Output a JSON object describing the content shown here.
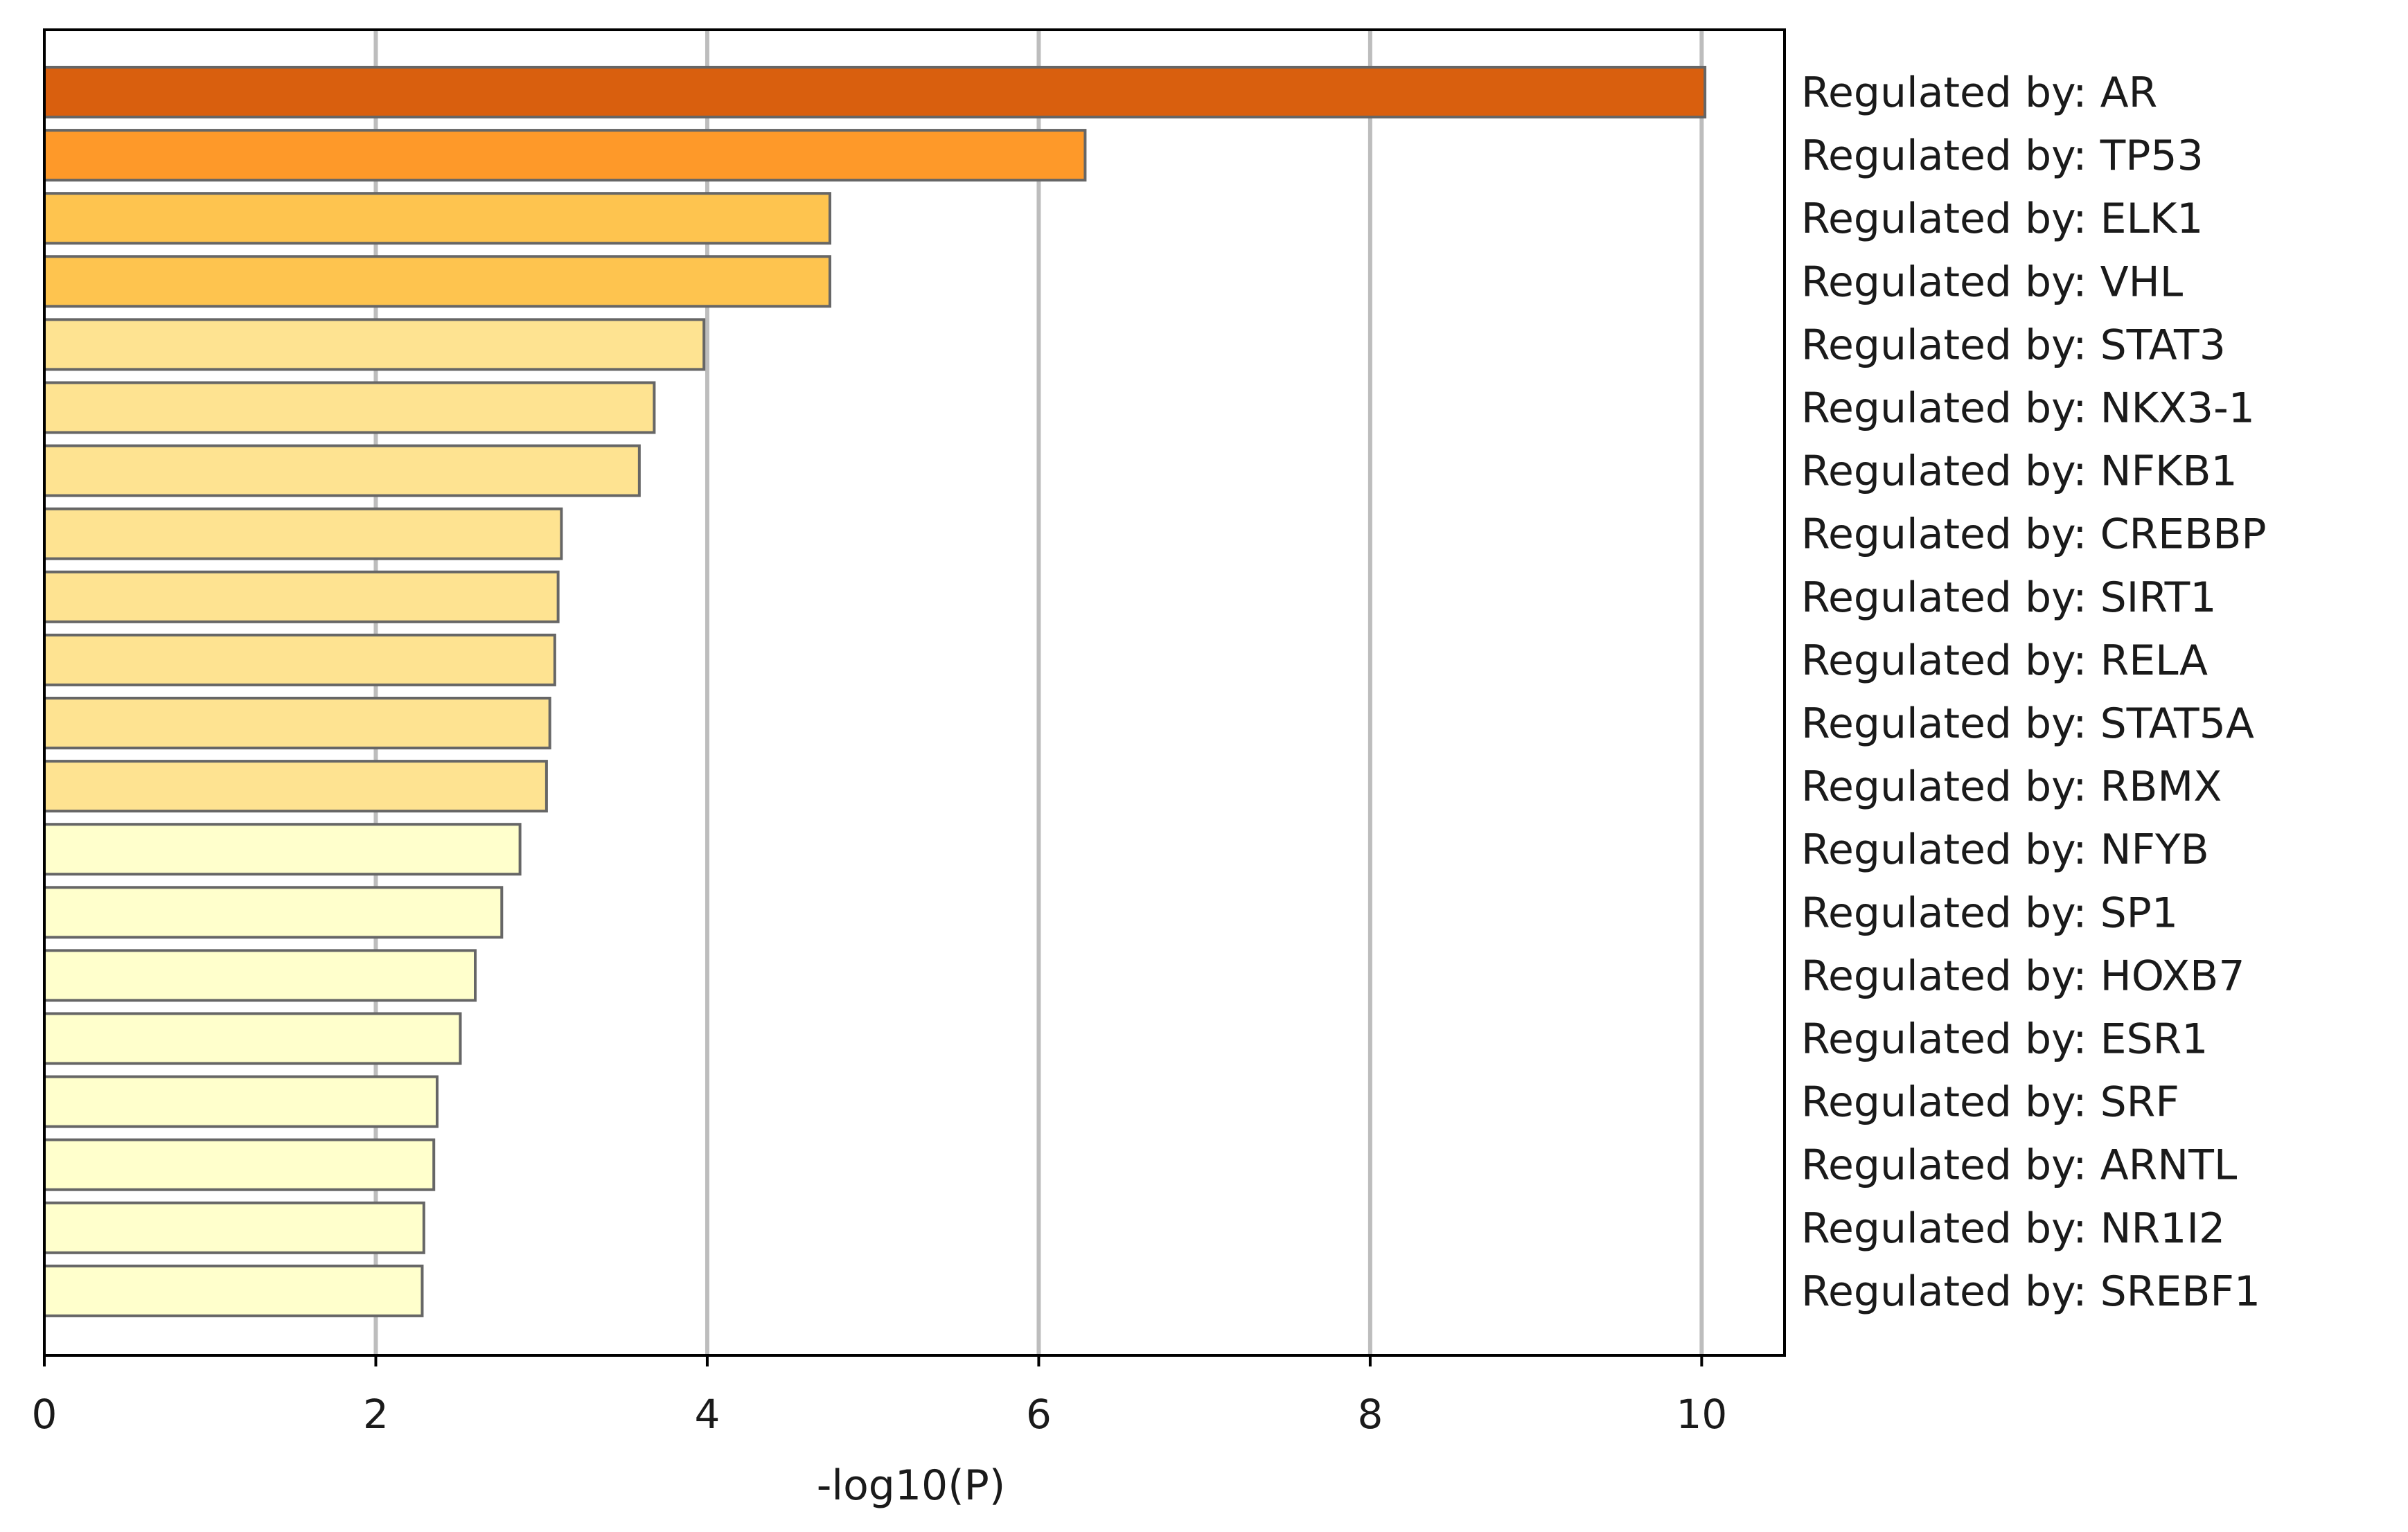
{
  "chart_data": {
    "type": "bar",
    "orientation": "horizontal",
    "title": "",
    "xlabel": "-log10(P)",
    "ylabel": "",
    "xlim": [
      0,
      10.5
    ],
    "xticks": [
      0,
      2,
      4,
      6,
      8,
      10
    ],
    "grid": true,
    "categories": [
      "Regulated by: AR",
      "Regulated by: TP53",
      "Regulated by: ELK1",
      "Regulated by: VHL",
      "Regulated by: STAT3",
      "Regulated by: NKX3-1",
      "Regulated by: NFKB1",
      "Regulated by: CREBBP",
      "Regulated by: SIRT1",
      "Regulated by: RELA",
      "Regulated by: STAT5A",
      "Regulated by: RBMX",
      "Regulated by: NFYB",
      "Regulated by: SP1",
      "Regulated by: HOXB7",
      "Regulated by: ESR1",
      "Regulated by: SRF",
      "Regulated by: ARNTL",
      "Regulated by: NR1I2",
      "Regulated by: SREBF1"
    ],
    "values": [
      10.02,
      6.28,
      4.74,
      4.74,
      3.98,
      3.68,
      3.59,
      3.12,
      3.1,
      3.08,
      3.05,
      3.03,
      2.87,
      2.76,
      2.6,
      2.51,
      2.37,
      2.35,
      2.29,
      2.28
    ],
    "bar_colors": [
      "#d95f0e",
      "#fe9929",
      "#fec44f",
      "#fec44f",
      "#fee391",
      "#fee391",
      "#fee391",
      "#fee391",
      "#fee391",
      "#fee391",
      "#fee391",
      "#fee391",
      "#ffffcc",
      "#ffffcc",
      "#ffffcc",
      "#ffffcc",
      "#ffffcc",
      "#ffffcc",
      "#ffffcc",
      "#ffffcc"
    ],
    "bar_edge_color": "#666666",
    "grid_color": "#bdbdbd"
  }
}
